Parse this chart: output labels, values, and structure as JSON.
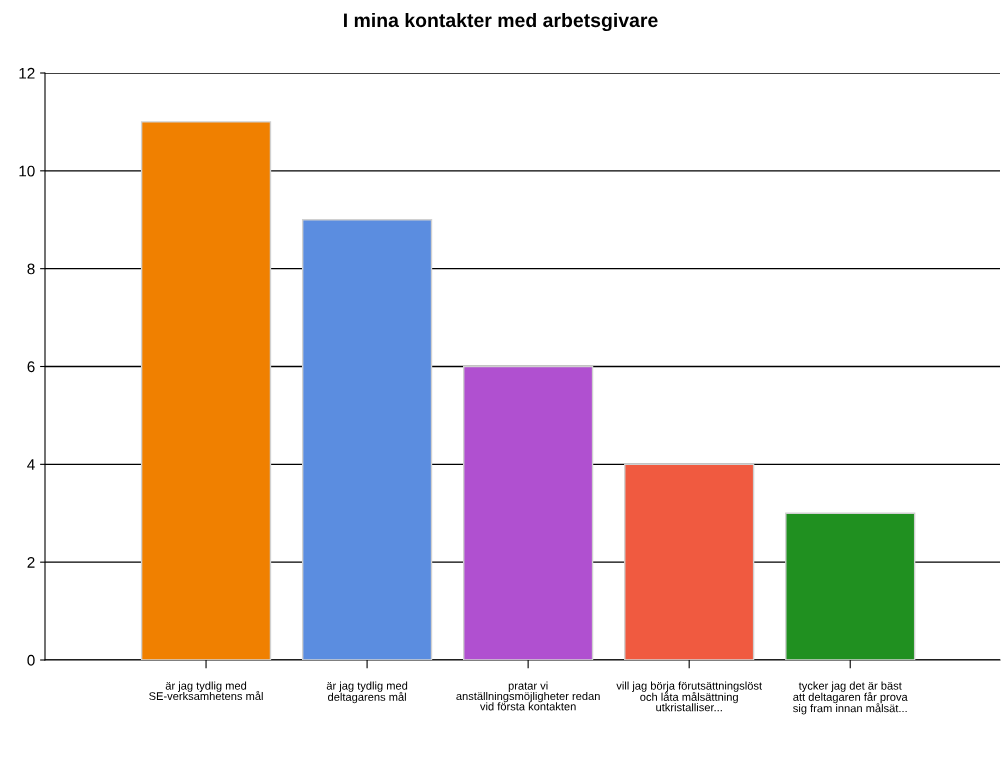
{
  "chart_data": {
    "type": "bar",
    "title": "I mina kontakter med arbetsgivare",
    "categories": [
      "är jag tydlig med\nSE-verksamhetens mål",
      "är jag tydlig med\ndeltagarens mål",
      "pratar vi\nanställningsmöjligheter redan\nvid första kontakten",
      "vill jag börja förutsättningslöst\noch låta målsättning\nutkristalliser...",
      "tycker jag det är bäst\natt deltagaren får prova\nsig fram innan målsät..."
    ],
    "values": [
      11,
      9,
      6,
      4,
      3
    ],
    "colors": [
      "#f08000",
      "#5b8de0",
      "#b050d0",
      "#f05a40",
      "#209020"
    ],
    "ylim": [
      0,
      12
    ],
    "yticks": [
      0,
      2,
      4,
      6,
      8,
      10,
      12
    ],
    "grid": "y"
  }
}
